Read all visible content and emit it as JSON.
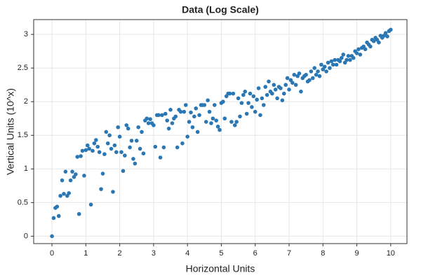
{
  "chart_data": {
    "type": "scatter",
    "title": "Data (Log Scale)",
    "xlabel": "Horizontal Units",
    "ylabel": "Vertical Units (10^x)",
    "color": "#2a77b4",
    "grid": true,
    "xlim": [
      -0.54,
      10.48
    ],
    "ylim": [
      -0.11,
      3.22
    ],
    "xticks": [
      0,
      1,
      2,
      3,
      4,
      5,
      6,
      7,
      8,
      9,
      10
    ],
    "yticks": [
      0,
      0.5,
      1,
      1.5,
      2,
      2.5,
      3
    ],
    "x": [
      0,
      0.05,
      0.1,
      0.15,
      0.2,
      0.25,
      0.3,
      0.35,
      0.4,
      0.45,
      0.5,
      0.55,
      0.6,
      0.65,
      0.7,
      0.75,
      0.8,
      0.85,
      0.9,
      0.95,
      1,
      1.05,
      1.1,
      1.15,
      1.2,
      1.25,
      1.3,
      1.35,
      1.4,
      1.45,
      1.5,
      1.55,
      1.6,
      1.65,
      1.7,
      1.75,
      1.8,
      1.85,
      1.9,
      1.95,
      2,
      2.05,
      2.1,
      2.15,
      2.2,
      2.25,
      2.3,
      2.35,
      2.4,
      2.45,
      2.5,
      2.55,
      2.6,
      2.65,
      2.7,
      2.75,
      2.8,
      2.85,
      2.9,
      2.95,
      3,
      3.05,
      3.1,
      3.15,
      3.2,
      3.25,
      3.3,
      3.35,
      3.4,
      3.45,
      3.5,
      3.55,
      3.6,
      3.65,
      3.7,
      3.75,
      3.8,
      3.85,
      3.9,
      3.95,
      4,
      4.05,
      4.1,
      4.15,
      4.2,
      4.25,
      4.3,
      4.35,
      4.4,
      4.45,
      4.5,
      4.55,
      4.6,
      4.65,
      4.7,
      4.75,
      4.8,
      4.85,
      4.9,
      4.95,
      5,
      5.05,
      5.1,
      5.15,
      5.2,
      5.25,
      5.3,
      5.35,
      5.4,
      5.45,
      5.5,
      5.55,
      5.6,
      5.65,
      5.7,
      5.75,
      5.8,
      5.85,
      5.9,
      5.95,
      6,
      6.05,
      6.1,
      6.15,
      6.2,
      6.25,
      6.3,
      6.35,
      6.4,
      6.45,
      6.5,
      6.55,
      6.6,
      6.65,
      6.7,
      6.75,
      6.8,
      6.85,
      6.9,
      6.95,
      7,
      7.05,
      7.1,
      7.15,
      7.2,
      7.25,
      7.3,
      7.35,
      7.4,
      7.45,
      7.5,
      7.55,
      7.6,
      7.65,
      7.7,
      7.75,
      7.8,
      7.85,
      7.9,
      7.95,
      8,
      8.05,
      8.1,
      8.15,
      8.2,
      8.25,
      8.3,
      8.35,
      8.4,
      8.45,
      8.5,
      8.55,
      8.6,
      8.65,
      8.7,
      8.75,
      8.8,
      8.85,
      8.9,
      8.95,
      9,
      9.05,
      9.1,
      9.15,
      9.2,
      9.25,
      9.3,
      9.35,
      9.4,
      9.45,
      9.5,
      9.55,
      9.6,
      9.65,
      9.7,
      9.75,
      9.8,
      9.85,
      9.9,
      9.95,
      10
    ],
    "values": [
      0,
      0.27,
      0.42,
      0.44,
      0.3,
      0.6,
      0.83,
      0.63,
      0.96,
      0.6,
      0.64,
      0.83,
      0.96,
      0.88,
      0.92,
      1.18,
      0.33,
      1.19,
      1.27,
      0.9,
      1.28,
      1.35,
      1.3,
      0.47,
      1.27,
      1.38,
      1.43,
      1.33,
      1.25,
      0.7,
      0.93,
      1.22,
      1.55,
      1.38,
      1.5,
      1.3,
      0.66,
      1.35,
      1.25,
      1.62,
      1.48,
      1.25,
      0.97,
      1.2,
      1.65,
      1.6,
      1.32,
      1.42,
      1.15,
      1.08,
      1.42,
      1.62,
      1.3,
      1.55,
      1.23,
      1.72,
      1.75,
      1.68,
      1.74,
      1.68,
      1.65,
      1.33,
      1.8,
      1.8,
      1.17,
      1.8,
      1.32,
      1.82,
      1.72,
      1.6,
      1.88,
      1.68,
      1.75,
      1.78,
      1.32,
      1.88,
      1.85,
      1.38,
      1.85,
      1.95,
      1.48,
      1.7,
      1.84,
      1.62,
      1.78,
      1.9,
      1.55,
      1.8,
      1.95,
      1.95,
      1.95,
      1.7,
      2.02,
      1.85,
      1.68,
      1.75,
      1.95,
      1.72,
      1.63,
      1.58,
      1.98,
      2.0,
      1.75,
      2.08,
      2.12,
      2.12,
      1.7,
      2.12,
      1.65,
      1.7,
      2.05,
      1.78,
      1.98,
      2.1,
      2.15,
      1.82,
      1.98,
      2.12,
      1.92,
      2.08,
      1.85,
      2.03,
      2.2,
      1.8,
      2.05,
      1.95,
      2.22,
      2.1,
      2.3,
      2.15,
      2.12,
      2.25,
      2.18,
      2.05,
      2.22,
      2.2,
      2.02,
      2.12,
      2.25,
      2.35,
      2.18,
      2.32,
      2.28,
      2.4,
      2.25,
      2.38,
      2.42,
      2.15,
      2.35,
      2.38,
      2.4,
      2.3,
      2.32,
      2.45,
      2.35,
      2.5,
      2.4,
      2.45,
      2.38,
      2.55,
      2.48,
      2.52,
      2.45,
      2.58,
      2.5,
      2.6,
      2.55,
      2.62,
      2.55,
      2.62,
      2.6,
      2.65,
      2.7,
      2.58,
      2.62,
      2.68,
      2.62,
      2.68,
      2.65,
      2.75,
      2.72,
      2.78,
      2.7,
      2.8,
      2.82,
      2.78,
      2.88,
      2.85,
      2.82,
      2.92,
      2.9,
      2.95,
      2.92,
      2.88,
      2.98,
      2.95,
      2.98,
      3.02,
      2.97,
      3.05,
      3.07
    ]
  }
}
